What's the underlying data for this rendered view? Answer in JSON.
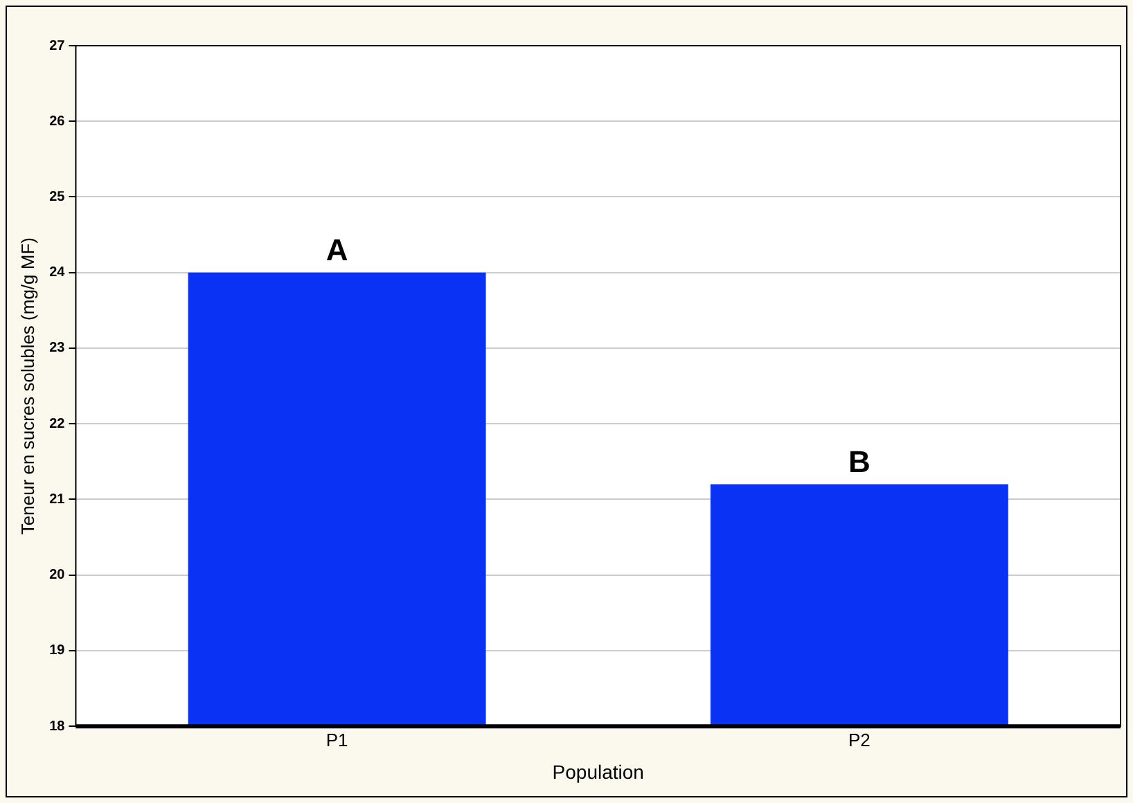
{
  "chart_data": {
    "type": "bar",
    "xlabel": "Population",
    "ylabel": "Teneur en sucres solubles (mg/g MF)",
    "categories": [
      "P1",
      "P2"
    ],
    "values": [
      24.0,
      21.2
    ],
    "color": "#0a32f5",
    "ylim": [
      18,
      27
    ],
    "yticks": [
      18,
      19,
      20,
      21,
      22,
      23,
      24,
      25,
      26,
      27
    ],
    "grid": "y",
    "annotations": [
      {
        "text": "A",
        "x": "P1",
        "y": 24.0
      },
      {
        "text": "B",
        "x": "P2",
        "y": 21.2
      }
    ]
  }
}
